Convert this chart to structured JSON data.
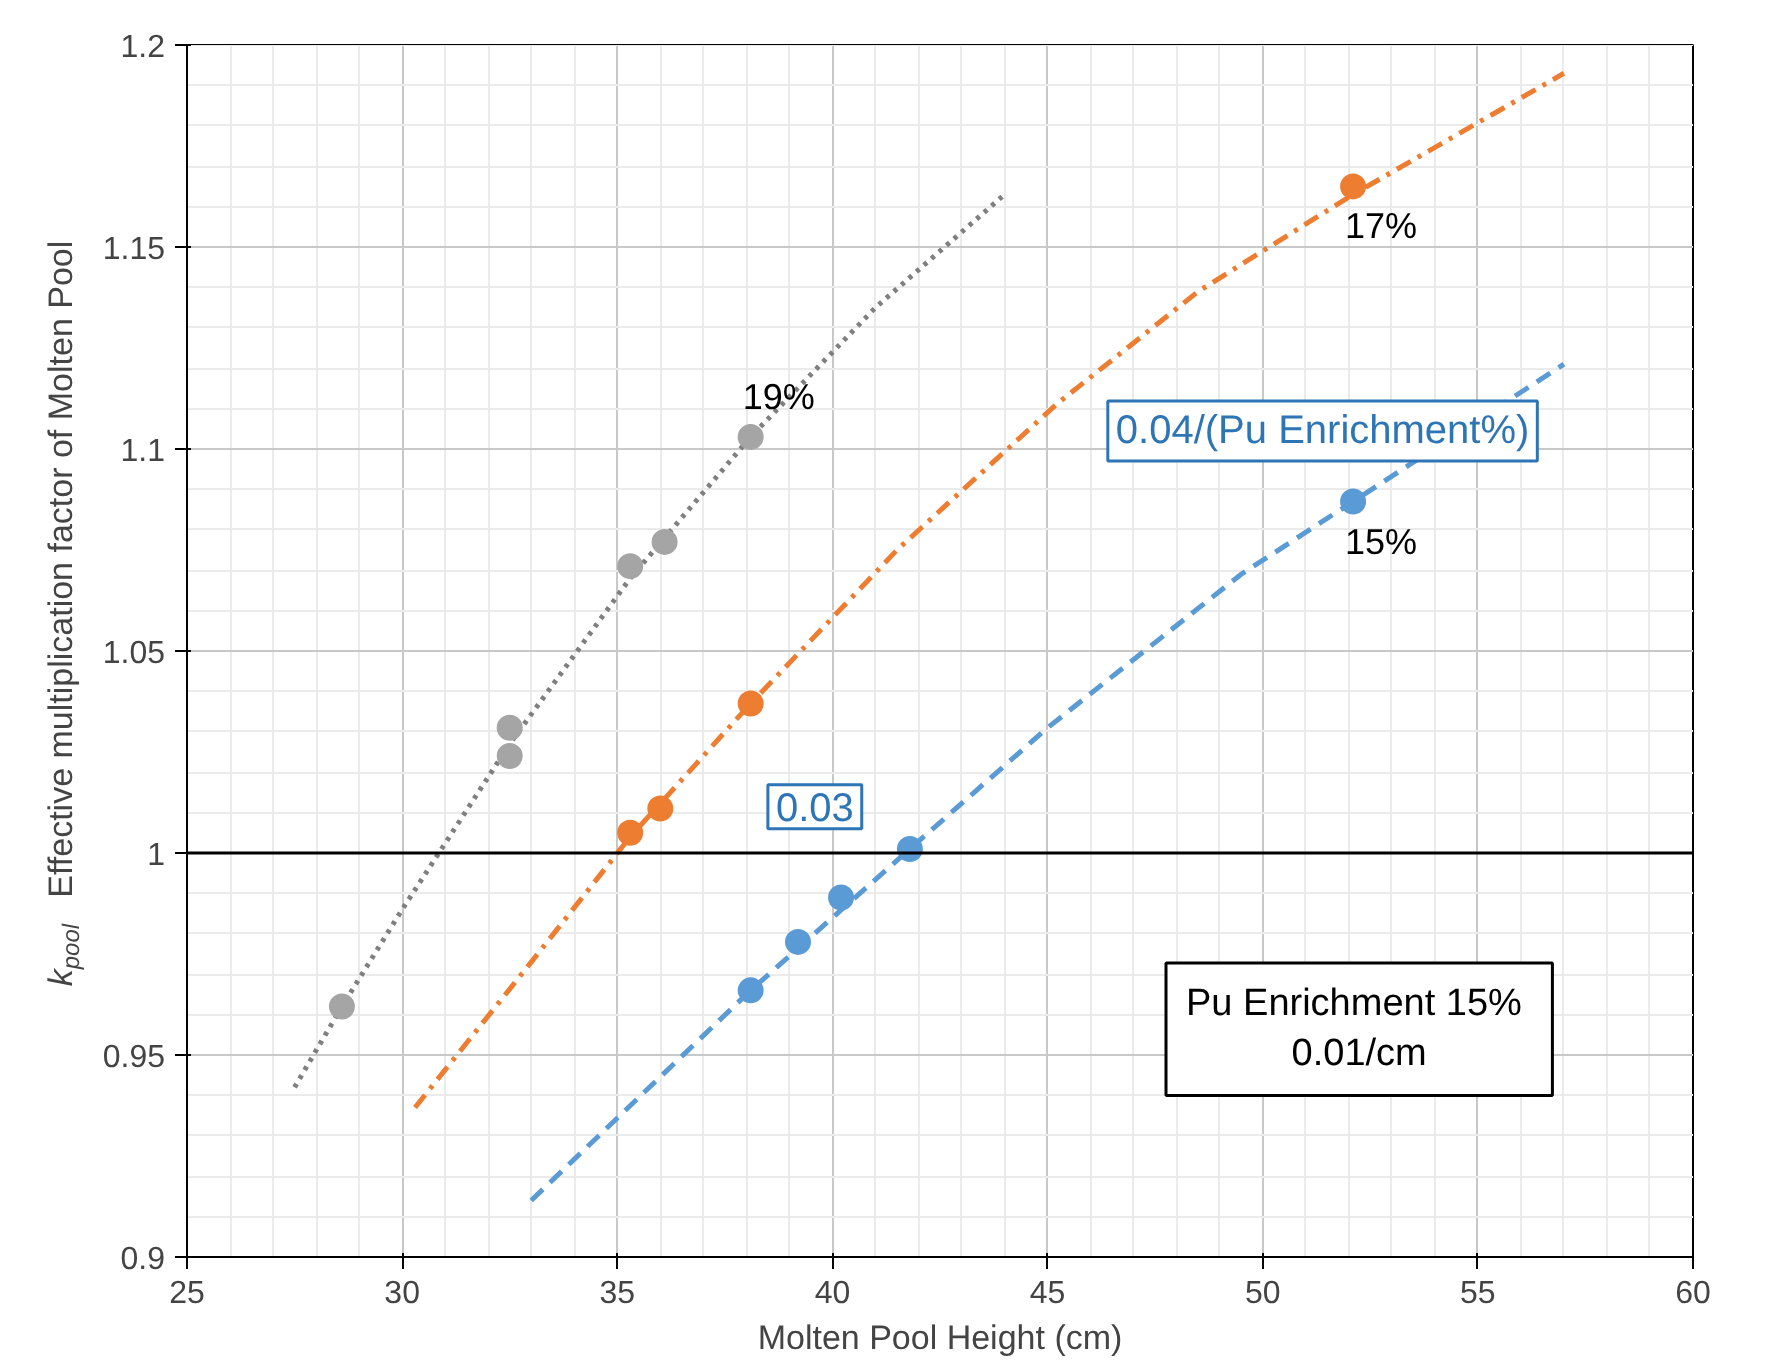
{
  "chart_data": {
    "type": "scatter",
    "xlabel": "Molten Pool Height (cm)",
    "ylabel": "k$_{pool}$  Effective multiplication factor of Molten Pool",
    "xlim": [
      25,
      60
    ],
    "xticks": [
      25,
      30,
      35,
      40,
      45,
      50,
      55,
      60
    ],
    "ylim": [
      0.9,
      1.2
    ],
    "yticks": [
      0.9,
      0.95,
      1,
      1.05,
      1.1,
      1.15,
      1.2
    ],
    "grid": true,
    "marker": "circle",
    "series": [
      {
        "type": "line",
        "line_style": "dotted",
        "marker": "none",
        "color": "#7f7f7f",
        "x": [
          27.5,
          28.6,
          30,
          32.5,
          35.3,
          38.1,
          41,
          44
        ],
        "values": [
          0.942,
          0.962,
          0.986,
          1.027,
          1.068,
          1.103,
          1.135,
          1.163
        ]
      },
      {
        "type": "line",
        "line_style": "dashdot",
        "marker": "none",
        "color": "#ed7d31",
        "x": [
          30.3,
          33,
          35.3,
          38.1,
          41.5,
          45.2,
          48.5,
          52.1,
          57
        ],
        "values": [
          0.937,
          0.973,
          1.004,
          1.037,
          1.075,
          1.111,
          1.139,
          1.163,
          1.193
        ]
      },
      {
        "type": "line",
        "line_style": "dashed",
        "marker": "none",
        "color": "#5b9bd5",
        "x": [
          33,
          38.1,
          41.8,
          45,
          49.5,
          52.1,
          57
        ],
        "values": [
          0.914,
          0.966,
          1.001,
          1.031,
          1.069,
          1.087,
          1.121
        ]
      },
      {
        "name": "19%",
        "color": "#a5a5a5",
        "x": [
          28.6,
          32.5,
          32.5,
          35.3,
          36.1,
          38.1
        ],
        "values": [
          0.962,
          1.031,
          1.024,
          1.071,
          1.077,
          1.103
        ]
      },
      {
        "name": "17%",
        "color": "#ed7d31",
        "x": [
          35.3,
          36.0,
          38.1,
          52.1
        ],
        "values": [
          1.005,
          1.011,
          1.037,
          1.165
        ]
      },
      {
        "name": "15%",
        "color": "#5b9bd5",
        "x": [
          38.1,
          39.2,
          40.2,
          41.8,
          52.1
        ],
        "values": [
          0.966,
          0.978,
          0.989,
          1.001,
          1.087
        ]
      }
    ],
    "ref_lines": [
      {
        "axis": "y",
        "value": 1,
        "color": "#000000"
      }
    ],
    "annotations": [
      "0.03",
      "0.04/(Pu Enrichment%)",
      "Pu Enrichment  15%\n0.01/cm"
    ]
  }
}
